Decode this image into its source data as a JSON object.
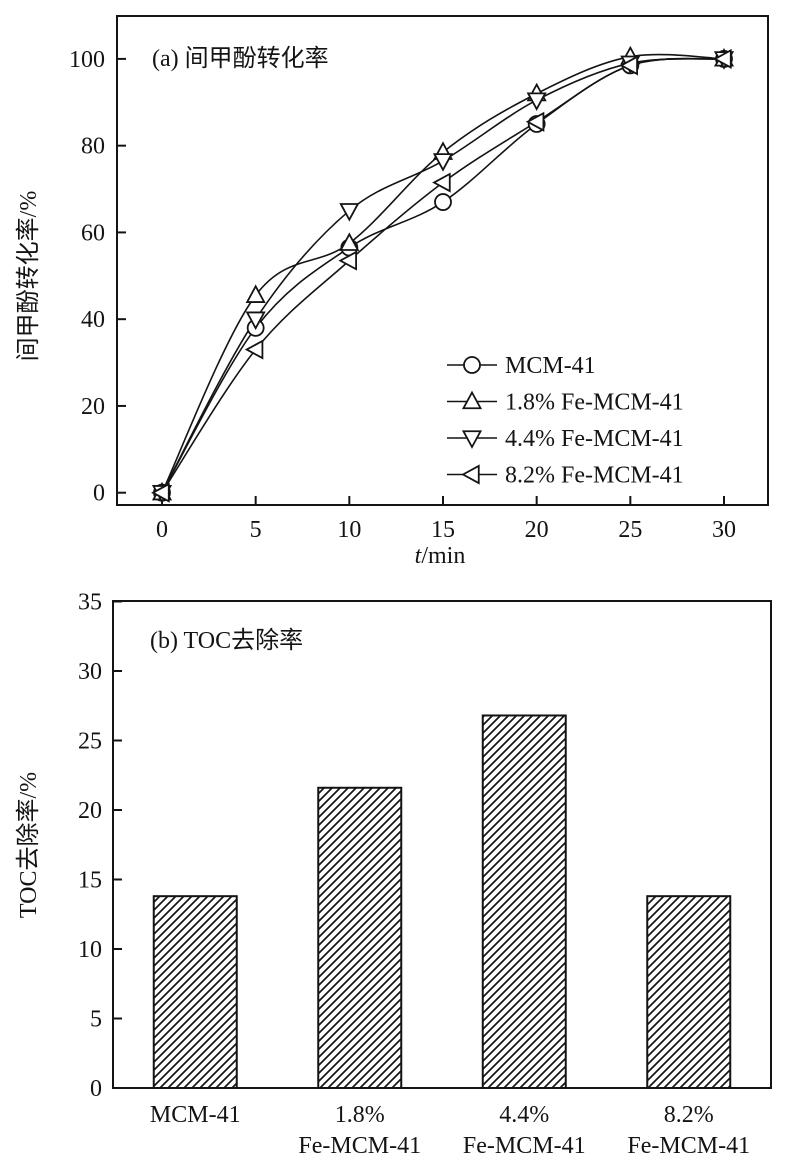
{
  "figure": {
    "background": "#ffffff",
    "ink_color": "#141414",
    "description_visible_panels": [
      "a",
      "b"
    ]
  },
  "chart_data": [
    {
      "type": "line",
      "panel": "a",
      "title": "(a) 间甲酚转化率",
      "xlabel": "t/min",
      "ylabel": "间甲酚转化率/%",
      "x": [
        0,
        5,
        10,
        15,
        20,
        25,
        30
      ],
      "xticks": [
        0,
        5,
        10,
        15,
        20,
        25,
        30
      ],
      "yticks": [
        0,
        20,
        40,
        60,
        80,
        100
      ],
      "xlim": [
        -2.4,
        32.4
      ],
      "ylim": [
        -2.8,
        109.9
      ],
      "grid": false,
      "legend_position": "inside-right-middle",
      "marker_fill": "#ffffff",
      "series": [
        {
          "name": "MCM-41",
          "marker": "circle",
          "values": [
            0,
            38,
            56.5,
            67,
            85,
            98.5,
            100
          ]
        },
        {
          "name": "1.8% Fe-MCM-41",
          "marker": "triangle-up",
          "values": [
            0,
            45.5,
            57.5,
            78.5,
            92,
            100.5,
            100
          ]
        },
        {
          "name": "4.4% Fe-MCM-41",
          "marker": "triangle-down",
          "values": [
            0,
            40,
            65,
            76.5,
            90.5,
            99,
            100
          ]
        },
        {
          "name": "8.2% Fe-MCM-41",
          "marker": "triangle-left",
          "values": [
            0,
            33,
            53.5,
            71.5,
            85.5,
            98.5,
            100
          ]
        }
      ]
    },
    {
      "type": "bar",
      "panel": "b",
      "title": "(b) TOC去除率",
      "xlabel": "",
      "ylabel": "TOC去除率/%",
      "categories": [
        "MCM-41",
        "1.8%\nFe-MCM-41",
        "4.4%\nFe-MCM-41",
        "8.2%\nFe-MCM-41"
      ],
      "values": [
        13.8,
        21.6,
        26.8,
        13.8
      ],
      "yticks": [
        0,
        5,
        10,
        15,
        20,
        25,
        30,
        35
      ],
      "ylim": [
        0,
        35
      ],
      "grid": false,
      "bar_fill": "diagonal-hatch",
      "bar_outline": "#141414"
    }
  ]
}
